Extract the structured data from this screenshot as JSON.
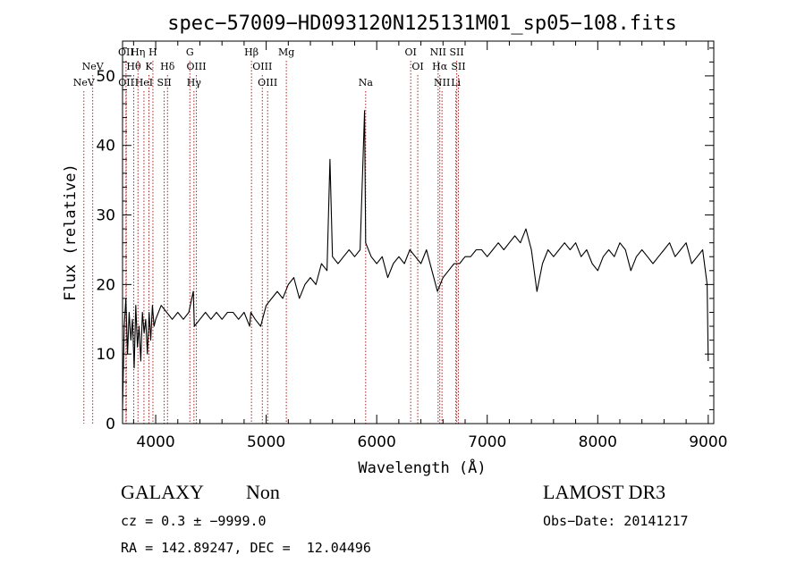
{
  "chart_data": {
    "type": "line",
    "title": "spec−57009−HD093120N125131M01_sp05−108.fits",
    "xlabel": "Wavelength (Å)",
    "ylabel": "Flux (relative)",
    "xlim": [
      3700,
      9050
    ],
    "ylim": [
      0,
      55
    ],
    "xticks": [
      4000,
      5000,
      6000,
      7000,
      8000,
      9000
    ],
    "yticks": [
      0,
      10,
      20,
      30,
      40,
      50
    ],
    "line_color": "#000000",
    "marker_color": "#b22222",
    "series": [
      {
        "name": "spectrum",
        "x": [
          3700,
          3715,
          3730,
          3745,
          3760,
          3775,
          3790,
          3805,
          3820,
          3835,
          3850,
          3865,
          3880,
          3895,
          3910,
          3925,
          3940,
          3955,
          3970,
          3985,
          4000,
          4050,
          4100,
          4150,
          4200,
          4250,
          4300,
          4340,
          4350,
          4400,
          4450,
          4500,
          4550,
          4600,
          4650,
          4700,
          4750,
          4800,
          4850,
          4861,
          4900,
          4950,
          5000,
          5050,
          5100,
          5150,
          5200,
          5250,
          5300,
          5350,
          5400,
          5450,
          5500,
          5550,
          5577,
          5600,
          5650,
          5700,
          5750,
          5800,
          5850,
          5890,
          5900,
          5950,
          6000,
          6050,
          6100,
          6150,
          6200,
          6250,
          6300,
          6350,
          6400,
          6450,
          6500,
          6550,
          6600,
          6650,
          6700,
          6750,
          6800,
          6850,
          6900,
          6950,
          7000,
          7050,
          7100,
          7150,
          7200,
          7250,
          7300,
          7350,
          7400,
          7450,
          7500,
          7550,
          7600,
          7650,
          7700,
          7750,
          7800,
          7850,
          7900,
          7950,
          8000,
          8050,
          8100,
          8150,
          8200,
          8250,
          8300,
          8350,
          8400,
          8450,
          8500,
          8550,
          8600,
          8650,
          8700,
          8750,
          8800,
          8850,
          8900,
          8950,
          8990,
          9000
        ],
        "y": [
          2,
          14,
          18,
          10,
          16,
          12,
          15,
          8,
          17,
          11,
          14,
          9,
          16,
          13,
          15,
          10,
          16,
          12,
          17,
          14,
          15,
          17,
          16,
          15,
          16,
          15,
          16,
          19,
          14,
          15,
          16,
          15,
          16,
          15,
          16,
          16,
          15,
          16,
          14,
          16,
          15,
          14,
          17,
          18,
          19,
          18,
          20,
          21,
          18,
          20,
          21,
          20,
          23,
          22,
          38,
          24,
          23,
          24,
          25,
          24,
          25,
          45,
          26,
          24,
          23,
          24,
          21,
          23,
          24,
          23,
          25,
          24,
          23,
          25,
          22,
          19,
          21,
          22,
          23,
          23,
          24,
          24,
          25,
          25,
          24,
          25,
          26,
          25,
          26,
          27,
          26,
          28,
          25,
          19,
          23,
          25,
          24,
          25,
          26,
          25,
          26,
          24,
          25,
          23,
          22,
          24,
          25,
          24,
          26,
          25,
          22,
          24,
          25,
          24,
          23,
          24,
          25,
          26,
          24,
          25,
          26,
          23,
          24,
          25,
          20,
          9
        ]
      }
    ],
    "line_markers": [
      {
        "label": "NeV",
        "x": 3426,
        "row": 1
      },
      {
        "label": "NeV",
        "x": 3346,
        "row": 2
      },
      {
        "label": "OII",
        "x": 3727,
        "row": 0
      },
      {
        "label": "OII",
        "x": 3729,
        "row": 2
      },
      {
        "label": "Hη",
        "x": 3835,
        "row": 0
      },
      {
        "label": "Hθ",
        "x": 3797,
        "row": 1
      },
      {
        "label": "HeI",
        "x": 3889,
        "row": 2
      },
      {
        "label": "H",
        "x": 3970,
        "row": 0
      },
      {
        "label": "K",
        "x": 3934,
        "row": 1
      },
      {
        "label": "Hδ",
        "x": 4102,
        "row": 1
      },
      {
        "label": "SII",
        "x": 4072,
        "row": 2
      },
      {
        "label": "G",
        "x": 4304,
        "row": 0
      },
      {
        "label": "OIII",
        "x": 4363,
        "row": 1
      },
      {
        "label": "Hγ",
        "x": 4341,
        "row": 2
      },
      {
        "label": "Hβ",
        "x": 4861,
        "row": 0
      },
      {
        "label": "OIII",
        "x": 4959,
        "row": 1
      },
      {
        "label": "OIII",
        "x": 5007,
        "row": 2
      },
      {
        "label": "Mg",
        "x": 5176,
        "row": 0
      },
      {
        "label": "Na",
        "x": 5893,
        "row": 2
      },
      {
        "label": "OI",
        "x": 6300,
        "row": 0
      },
      {
        "label": "OI",
        "x": 6364,
        "row": 1
      },
      {
        "label": "NII",
        "x": 6548,
        "row": 0
      },
      {
        "label": "Hα",
        "x": 6563,
        "row": 1
      },
      {
        "label": "NII",
        "x": 6583,
        "row": 2
      },
      {
        "label": "SII",
        "x": 6716,
        "row": 0
      },
      {
        "label": "SII",
        "x": 6731,
        "row": 1
      },
      {
        "label": "Li",
        "x": 6708,
        "row": 2
      }
    ]
  },
  "info": {
    "class_label": "GALAXY",
    "subclass_label": "Non",
    "survey_label": "LAMOST DR3",
    "cz_text": "cz = 0.3 ± −9999.0",
    "obs_date_text": "Obs−Date: 20141217",
    "radec_text": "RA = 142.89247, DEC =  12.04496"
  }
}
